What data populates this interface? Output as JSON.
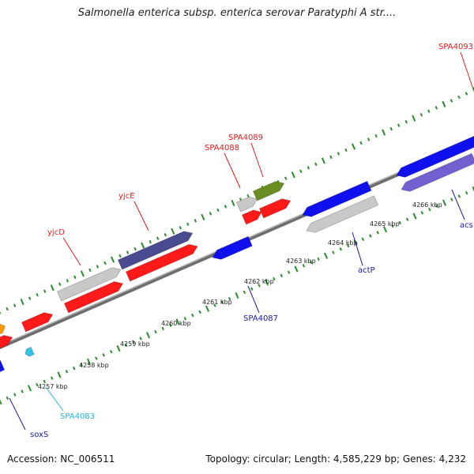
{
  "title": "Salmonella enterica subsp. enterica serovar Paratyphi A str....",
  "footer": {
    "accession": "Accession: NC_006511",
    "summary": "Topology: circular; Length: 4,585,229 bp; Genes: 4,232"
  },
  "kbp_ticks": [
    "4257 kbp",
    "4258 kbp",
    "4259 kbp",
    "4260 kbp",
    "4261 kbp",
    "4262 kbp",
    "4263 kbp",
    "4264 kbp",
    "4265 kbp",
    "4266 kbp"
  ],
  "gene_labels": [
    {
      "text": "SPA4093",
      "color": "#e41a1c"
    },
    {
      "text": "SPA4089",
      "color": "#e41a1c"
    },
    {
      "text": "SPA4088",
      "color": "#e41a1c"
    },
    {
      "text": "yjcE",
      "color": "#e41a1c"
    },
    {
      "text": "yjcD",
      "color": "#e41a1c"
    },
    {
      "text": "actP",
      "color": "#1a1aa8"
    },
    {
      "text": "acs",
      "color": "#1a1aa8"
    },
    {
      "text": "SPA4087",
      "color": "#1a1aa8"
    },
    {
      "text": "SPA4083",
      "color": "#29b6d8"
    },
    {
      "text": "soxS",
      "color": "#1a1aa8"
    }
  ],
  "colors": {
    "forward": "#ff1a1a",
    "reverse": "#1010ee",
    "pseudo": "#c8c8c8",
    "navy": "#4a4a90",
    "olive": "#6b8e23",
    "orange": "#ff9900",
    "cyan": "#33c3e6",
    "lilac": "#7060d0",
    "axis": "#8a8a8a",
    "ticks": "#2e8b2e"
  }
}
